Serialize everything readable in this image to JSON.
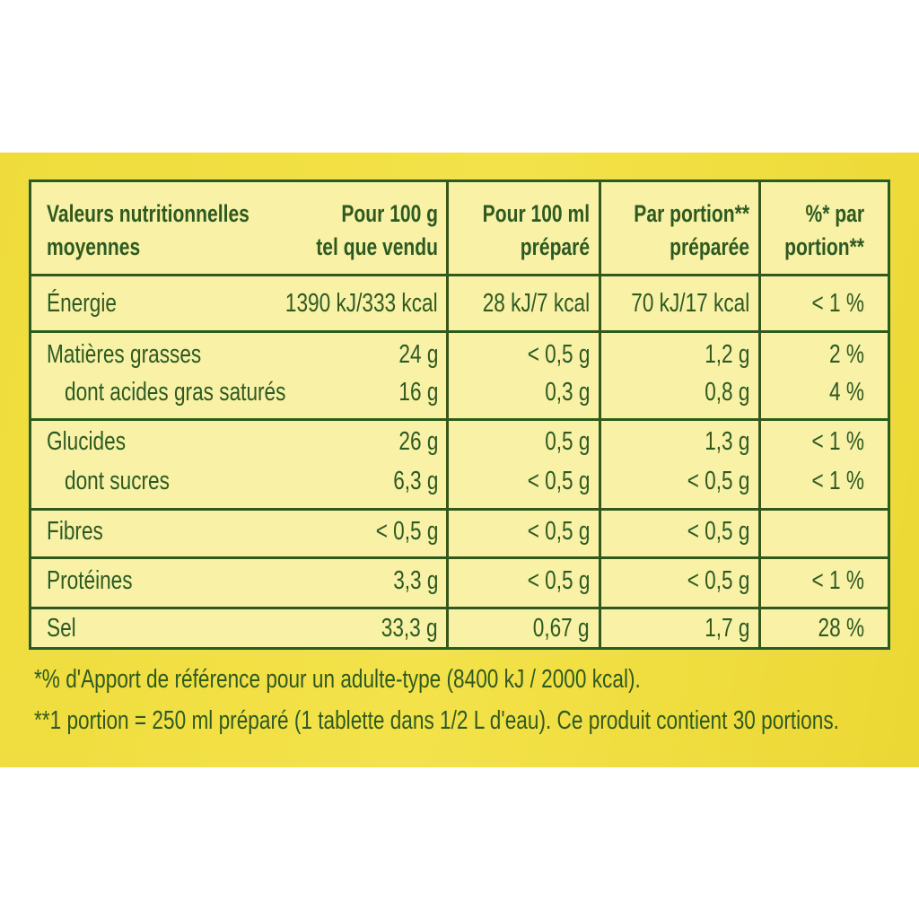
{
  "table": {
    "header": [
      [
        "Valeurs nutritionnelles",
        "moyennes"
      ],
      [
        "Pour 100 g",
        "tel que vendu"
      ],
      [
        "Pour 100 ml",
        "préparé"
      ],
      [
        "Par portion**",
        "préparée"
      ],
      [
        "%* par",
        "portion**"
      ]
    ],
    "rows": [
      {
        "label": "Énergie",
        "values": [
          "1390 kJ/333 kcal",
          "28 kJ/7 kcal",
          "70 kJ/17 kcal",
          "< 1 %"
        ]
      },
      {
        "label": "Matières grasses",
        "values": [
          "24 g",
          "< 0,5 g",
          "1,2 g",
          "2 %"
        ]
      },
      {
        "label": "dont acides gras saturés",
        "values": [
          "16 g",
          "0,3 g",
          "0,8 g",
          "4 %"
        ]
      },
      {
        "label": "Glucides",
        "values": [
          "26 g",
          "0,5 g",
          "1,3 g",
          "< 1 %"
        ]
      },
      {
        "label": "dont sucres",
        "values": [
          "6,3 g",
          "< 0,5 g",
          "< 0,5 g",
          "< 1 %"
        ]
      },
      {
        "label": "Fibres",
        "values": [
          "< 0,5 g",
          "< 0,5 g",
          "< 0,5 g",
          null
        ]
      },
      {
        "label": "Protéines",
        "values": [
          "3,3 g",
          "< 0,5 g",
          "< 0,5 g",
          "< 1 %"
        ]
      },
      {
        "label": "Sel",
        "values": [
          "33,3 g",
          "0,67 g",
          "1,7 g",
          "28 %"
        ]
      }
    ]
  },
  "footnotes": [
    "*% d'Apport de référence pour un adulte-type (8400 kJ / 2000 kcal).",
    "**1 portion = 250 ml préparé (1 tablette dans 1/2 L d'eau). Ce produit contient 30 portions."
  ]
}
